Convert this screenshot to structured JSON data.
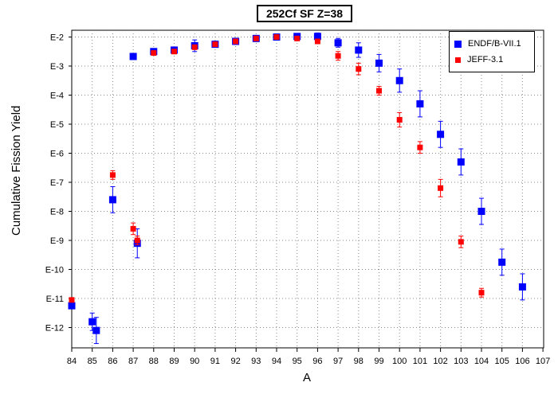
{
  "chart_data": {
    "type": "scatter",
    "title": "252Cf SF Z=38",
    "xlabel": "A",
    "ylabel": "Cumulative Fission Yield",
    "xlim": [
      84,
      107
    ],
    "ylim_exponent": [
      -12.8,
      -1.9
    ],
    "y_scale": "log",
    "grid": true,
    "legend_position": "top-right",
    "x_ticks": [
      "84",
      "85",
      "86",
      "87",
      "88",
      "89",
      "90",
      "91",
      "92",
      "93",
      "94",
      "95",
      "96",
      "97",
      "98",
      "99",
      "100",
      "101",
      "102",
      "103",
      "104",
      "105",
      "106",
      "107"
    ],
    "y_ticks": [
      {
        "exp": -2,
        "label": "E-2"
      },
      {
        "exp": -3,
        "label": "E-3"
      },
      {
        "exp": -4,
        "label": "E-4"
      },
      {
        "exp": -5,
        "label": "E-5"
      },
      {
        "exp": -6,
        "label": "E-6"
      },
      {
        "exp": -7,
        "label": "E-7"
      },
      {
        "exp": -8,
        "label": "E-8"
      },
      {
        "exp": -9,
        "label": "E-9"
      },
      {
        "exp": -10,
        "label": "E-10"
      },
      {
        "exp": -11,
        "label": "E-11"
      },
      {
        "exp": -12,
        "label": "E-12"
      }
    ],
    "series": [
      {
        "name": "ENDF/B-VII.1",
        "color": "#0000ff",
        "marker": "square",
        "points": [
          {
            "x": 84,
            "y_exp": -11.25,
            "err": 0.0
          },
          {
            "x": 85,
            "y_exp": -11.8,
            "err": 0.3
          },
          {
            "x": 85.2,
            "y_exp": -12.1,
            "err": 0.45
          },
          {
            "x": 86,
            "y_exp": -7.6,
            "err": 0.45
          },
          {
            "x": 87,
            "y_exp": -2.67,
            "err": 0.0
          },
          {
            "x": 87.2,
            "y_exp": -9.1,
            "err": 0.5
          },
          {
            "x": 88,
            "y_exp": -2.5,
            "err": 0.0
          },
          {
            "x": 89,
            "y_exp": -2.45,
            "err": 0.0
          },
          {
            "x": 90,
            "y_exp": -2.3,
            "err": 0.2
          },
          {
            "x": 91,
            "y_exp": -2.25,
            "err": 0.0
          },
          {
            "x": 92,
            "y_exp": -2.15,
            "err": 0.0
          },
          {
            "x": 93,
            "y_exp": -2.05,
            "err": 0.0
          },
          {
            "x": 94,
            "y_exp": -2.0,
            "err": 0.0
          },
          {
            "x": 95,
            "y_exp": -1.98,
            "err": 0.0
          },
          {
            "x": 96,
            "y_exp": -1.98,
            "err": 0.12
          },
          {
            "x": 97,
            "y_exp": -2.2,
            "err": 0.15
          },
          {
            "x": 98,
            "y_exp": -2.45,
            "err": 0.25
          },
          {
            "x": 99,
            "y_exp": -2.9,
            "err": 0.3
          },
          {
            "x": 100,
            "y_exp": -3.5,
            "err": 0.4
          },
          {
            "x": 101,
            "y_exp": -4.3,
            "err": 0.45
          },
          {
            "x": 102,
            "y_exp": -5.35,
            "err": 0.45
          },
          {
            "x": 103,
            "y_exp": -6.3,
            "err": 0.45
          },
          {
            "x": 104,
            "y_exp": -8.0,
            "err": 0.45
          },
          {
            "x": 105,
            "y_exp": -9.75,
            "err": 0.45
          },
          {
            "x": 106,
            "y_exp": -10.6,
            "err": 0.45
          }
        ]
      },
      {
        "name": "JEFF-3.1",
        "color": "#ff0000",
        "marker": "square",
        "points": [
          {
            "x": 84,
            "y_exp": -11.05,
            "err": 0.0
          },
          {
            "x": 86,
            "y_exp": -6.75,
            "err": 0.15
          },
          {
            "x": 87,
            "y_exp": -8.6,
            "err": 0.2
          },
          {
            "x": 87.2,
            "y_exp": -9.0,
            "err": 0.15
          },
          {
            "x": 88,
            "y_exp": -2.55,
            "err": 0.0
          },
          {
            "x": 89,
            "y_exp": -2.5,
            "err": 0.0
          },
          {
            "x": 90,
            "y_exp": -2.35,
            "err": 0.0
          },
          {
            "x": 91,
            "y_exp": -2.25,
            "err": 0.0
          },
          {
            "x": 92,
            "y_exp": -2.15,
            "err": 0.0
          },
          {
            "x": 93,
            "y_exp": -2.05,
            "err": 0.0
          },
          {
            "x": 94,
            "y_exp": -2.0,
            "err": 0.0
          },
          {
            "x": 95,
            "y_exp": -2.05,
            "err": 0.0
          },
          {
            "x": 96,
            "y_exp": -2.15,
            "err": 0.0
          },
          {
            "x": 97,
            "y_exp": -2.65,
            "err": 0.15
          },
          {
            "x": 98,
            "y_exp": -3.1,
            "err": 0.2
          },
          {
            "x": 99,
            "y_exp": -3.85,
            "err": 0.15
          },
          {
            "x": 100,
            "y_exp": -4.85,
            "err": 0.25
          },
          {
            "x": 101,
            "y_exp": -5.8,
            "err": 0.2
          },
          {
            "x": 102,
            "y_exp": -7.2,
            "err": 0.3
          },
          {
            "x": 103,
            "y_exp": -9.05,
            "err": 0.2
          },
          {
            "x": 104,
            "y_exp": -10.8,
            "err": 0.15
          }
        ]
      }
    ]
  }
}
